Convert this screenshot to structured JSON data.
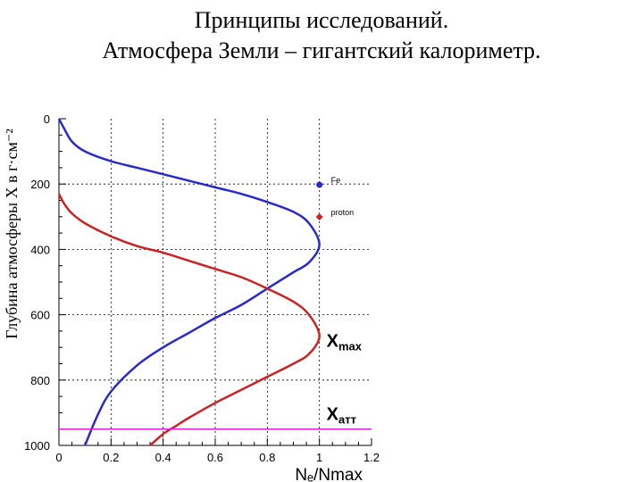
{
  "slide": {
    "title_line1": "Принципы исследований.",
    "title_line2": "Атмосфера Земли – гигантский калориметр."
  },
  "chart_data": {
    "type": "line",
    "ylabel": "Глубина атмосферы X в г·см⁻²",
    "xlabel": "Nₑ/Nmax",
    "xlim": [
      0,
      1.2
    ],
    "ylim": [
      1000,
      0
    ],
    "x_ticks": [
      "0",
      "0.2",
      "0.4",
      "0.6",
      "0.8",
      "1",
      "1.2"
    ],
    "y_ticks": [
      "0",
      "200",
      "400",
      "600",
      "800",
      "1000"
    ],
    "grid": true,
    "legend_placement": "right",
    "series": [
      {
        "name": "Fe",
        "color": "#2a2acb",
        "x": [
          0.0,
          0.02,
          0.05,
          0.1,
          0.2,
          0.3,
          0.4,
          0.5,
          0.6,
          0.7,
          0.8,
          0.9,
          0.96,
          1.0,
          0.96,
          0.9,
          0.8,
          0.7,
          0.6,
          0.5,
          0.4,
          0.3,
          0.2,
          0.15,
          0.1
        ],
        "y": [
          0,
          30,
          70,
          100,
          130,
          150,
          170,
          190,
          210,
          230,
          255,
          285,
          320,
          385,
          440,
          470,
          520,
          570,
          610,
          655,
          700,
          755,
          835,
          905,
          1000
        ]
      },
      {
        "name": "proton",
        "color": "#cc2222",
        "x": [
          0.0,
          0.02,
          0.05,
          0.1,
          0.2,
          0.3,
          0.4,
          0.5,
          0.6,
          0.7,
          0.8,
          0.9,
          0.96,
          1.0,
          0.96,
          0.9,
          0.8,
          0.7,
          0.6,
          0.5,
          0.45,
          0.4,
          0.35
        ],
        "y": [
          230,
          260,
          290,
          320,
          360,
          390,
          410,
          435,
          460,
          485,
          520,
          560,
          600,
          665,
          720,
          750,
          790,
          830,
          870,
          915,
          940,
          965,
          1000
        ]
      }
    ],
    "annotations": [
      {
        "label": "Xmax",
        "y": 665,
        "line": false
      },
      {
        "label": "Xатт",
        "y": 950,
        "line": true,
        "color": "#e020e0"
      }
    ]
  }
}
